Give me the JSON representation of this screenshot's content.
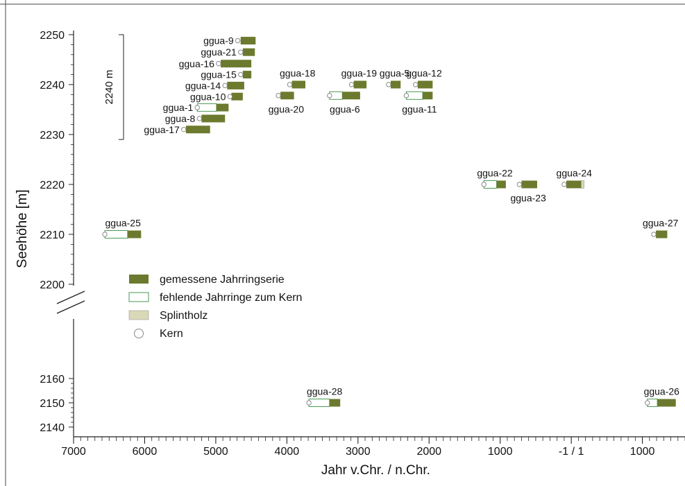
{
  "chart_data": {
    "type": "timeline",
    "xlabel": "Jahr v.Chr. / n.Chr.",
    "ylabel": "Seehöhe [m]",
    "x_axis": {
      "direction": "reversed (BC on left, AD on right)",
      "ticks": [
        "7000",
        "6000",
        "5000",
        "4000",
        "3000",
        "2000",
        "1000",
        "-1 / 1",
        "1000"
      ],
      "tick_years": [
        -7000,
        -6000,
        -5000,
        -4000,
        -3000,
        -2000,
        -1000,
        0,
        1000
      ],
      "range": [
        -7000,
        1600
      ]
    },
    "y_axis": {
      "broken": true,
      "upper_ticks": [
        2200,
        2210,
        2220,
        2230,
        2240,
        2250
      ],
      "lower_ticks": [
        2140,
        2150,
        2160
      ]
    },
    "bracket_label": "2240 m",
    "bracket_range": [
      2229,
      2250
    ],
    "legend": [
      {
        "label": "gemessene Jahrringserie",
        "style": "measured"
      },
      {
        "label": "fehlende Jahrringe zum Kern",
        "style": "missing"
      },
      {
        "label": "Splintholz",
        "style": "sapwood"
      },
      {
        "label": "Kern",
        "style": "pith"
      }
    ],
    "colors": {
      "measured": "#6b7a2e",
      "missing_border": "#4a9a55",
      "sapwood": "#d9d9b8",
      "pith_border": "#888888"
    },
    "series": [
      {
        "name": "ggua-9",
        "y": 2248.8,
        "pith": -4690,
        "measured": [
          -4650,
          -4440
        ]
      },
      {
        "name": "ggua-21",
        "y": 2246.5,
        "pith": -4650,
        "measured": [
          -4620,
          -4450
        ]
      },
      {
        "name": "ggua-16",
        "y": 2244.2,
        "pith": -4960,
        "measured": [
          -4930,
          -4500
        ]
      },
      {
        "name": "ggua-15",
        "y": 2242.0,
        "pith": -4650,
        "measured": [
          -4620,
          -4500
        ]
      },
      {
        "name": "ggua-14",
        "y": 2239.8,
        "pith": -4870,
        "measured": [
          -4840,
          -4600
        ]
      },
      {
        "name": "ggua-10",
        "y": 2237.6,
        "pith": -4800,
        "measured": [
          -4780,
          -4620
        ]
      },
      {
        "name": "ggua-1",
        "y": 2235.4,
        "pith": -5260,
        "missing": [
          -5260,
          -4990
        ],
        "measured": [
          -4990,
          -4820
        ]
      },
      {
        "name": "ggua-8",
        "y": 2233.2,
        "pith": -5230,
        "measured": [
          -5200,
          -4870
        ]
      },
      {
        "name": "ggua-17",
        "y": 2231.0,
        "pith": -5450,
        "measured": [
          -5420,
          -5080
        ]
      },
      {
        "name": "ggua-18",
        "y": 2240.0,
        "pith": -3960,
        "measured": [
          -3930,
          -3740
        ]
      },
      {
        "name": "ggua-20",
        "y": 2237.8,
        "pith": -4120,
        "measured": [
          -4090,
          -3900
        ]
      },
      {
        "name": "ggua-19",
        "y": 2240.0,
        "pith": -3090,
        "measured": [
          -3060,
          -2880
        ]
      },
      {
        "name": "ggua-6",
        "y": 2237.8,
        "pith": -3400,
        "missing": [
          -3400,
          -3220
        ],
        "measured": [
          -3220,
          -2970
        ]
      },
      {
        "name": "ggua-5",
        "y": 2240.0,
        "pith": -2570,
        "measured": [
          -2540,
          -2400
        ]
      },
      {
        "name": "ggua-12",
        "y": 2240.0,
        "pith": -2190,
        "measured": [
          -2160,
          -1950
        ]
      },
      {
        "name": "ggua-11",
        "y": 2237.8,
        "pith": -2320,
        "missing": [
          -2320,
          -2090
        ],
        "measured": [
          -2090,
          -1950
        ]
      },
      {
        "name": "ggua-22",
        "y": 2220.0,
        "pith": -1230,
        "missing": [
          -1230,
          -1050
        ],
        "measured": [
          -1050,
          -920
        ]
      },
      {
        "name": "ggua-23",
        "y": 2220.0,
        "pith": -730,
        "measured": [
          -700,
          -480
        ]
      },
      {
        "name": "ggua-24",
        "y": 2220.0,
        "pith": -100,
        "measured": [
          -70,
          140
        ],
        "sapwood": [
          140,
          180
        ]
      },
      {
        "name": "ggua-25",
        "y": 2210.0,
        "pith": -6560,
        "missing": [
          -6560,
          -6240
        ],
        "measured": [
          -6240,
          -6050
        ]
      },
      {
        "name": "ggua-27",
        "y": 2210.0,
        "pith": 1160,
        "measured": [
          1190,
          1350
        ]
      },
      {
        "name": "ggua-28",
        "y": 2150.0,
        "pith": -3690,
        "missing": [
          -3690,
          -3400
        ],
        "measured": [
          -3400,
          -3250
        ]
      },
      {
        "name": "ggua-26",
        "y": 2150.0,
        "pith": 1070,
        "missing": [
          1070,
          1210
        ],
        "measured": [
          1210,
          1470
        ]
      }
    ]
  }
}
